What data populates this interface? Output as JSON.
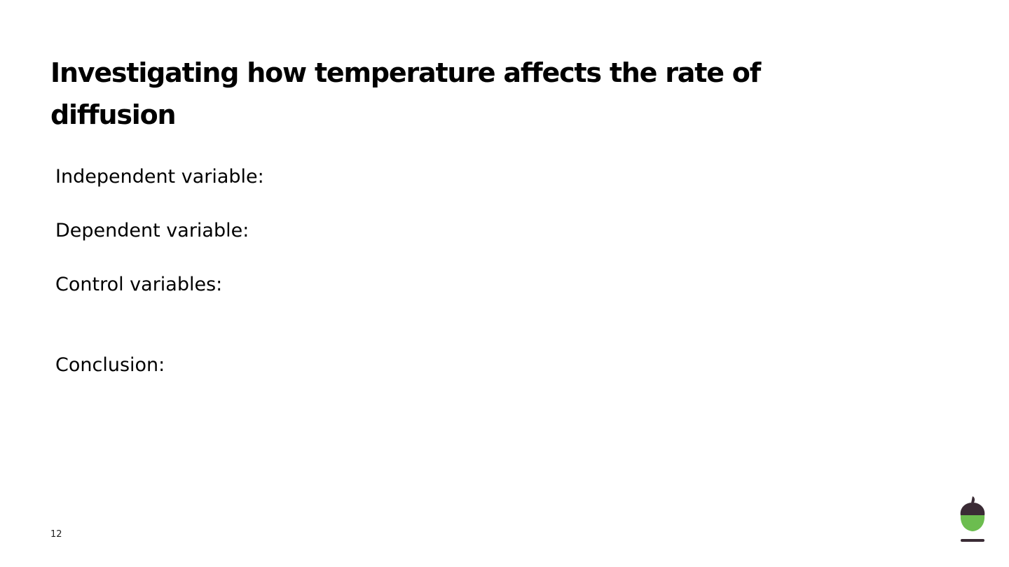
{
  "slide": {
    "title": "Investigating how temperature affects the rate of diffusion",
    "fields": {
      "independent_label": "Independent variable:",
      "dependent_label": "Dependent variable:",
      "control_label": "Control variables:",
      "conclusion_label": "Conclusion:"
    },
    "page_number": "12"
  },
  "logo": {
    "icon": "acorn-logo-icon",
    "colors": {
      "cap": "#3a2b35",
      "body": "#6cbd4f",
      "base": "#3a2b35"
    }
  }
}
